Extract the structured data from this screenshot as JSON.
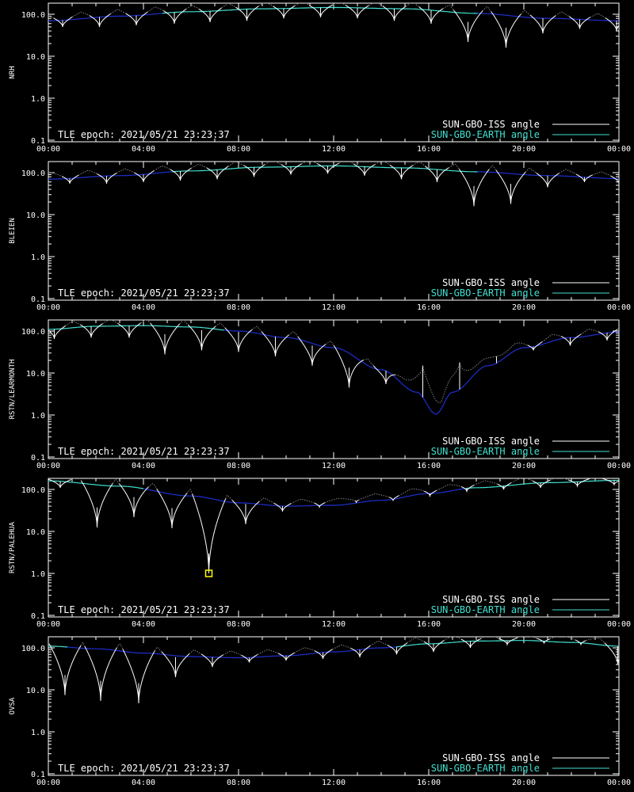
{
  "colors": {
    "background": "#000000",
    "axes": "#ffffff",
    "iss_series": "#ffffff",
    "iss_series_dim": "#808080",
    "earth_series_day": "#40e0d0",
    "earth_series_night": "#1e2fd0",
    "marker": "#ffff00"
  },
  "epoch_label": "TLE epoch: 2021/05/21 23:23:37",
  "legend": {
    "iss": "SUN-GBO-ISS angle",
    "earth": "SUN-GBO-EARTH angle"
  },
  "x_ticks": [
    "00:00",
    "04:00",
    "08:00",
    "12:00",
    "16:00",
    "20:00",
    "00:00"
  ],
  "y_ticks": [
    "100.0",
    "10.0",
    "1.0",
    "0.1"
  ],
  "chart_data": [
    {
      "type": "line",
      "station": "NRH",
      "ylabel": "NRH",
      "xlim_hours": [
        0,
        24
      ],
      "ylim": [
        0.1,
        100
      ],
      "y_scale": "log",
      "earth_angle": {
        "x_hours": [
          0,
          3,
          6,
          9,
          12,
          15,
          18,
          21,
          24
        ],
        "y": [
          70,
          90,
          115,
          135,
          145,
          135,
          105,
          80,
          70
        ]
      },
      "iss_angle": {
        "orbit_period_hours": 1.55,
        "dips": [
          {
            "t": 0.6,
            "y": 50
          },
          {
            "t": 2.15,
            "y": 50
          },
          {
            "t": 3.7,
            "y": 55
          },
          {
            "t": 5.3,
            "y": 60
          },
          {
            "t": 6.8,
            "y": 65
          },
          {
            "t": 8.35,
            "y": 70
          },
          {
            "t": 9.9,
            "y": 80
          },
          {
            "t": 11.45,
            "y": 85
          },
          {
            "t": 13.0,
            "y": 80
          },
          {
            "t": 14.55,
            "y": 70
          },
          {
            "t": 16.1,
            "y": 60
          },
          {
            "t": 17.65,
            "y": 22
          },
          {
            "t": 19.25,
            "y": 16
          },
          {
            "t": 20.8,
            "y": 35
          },
          {
            "t": 22.35,
            "y": 45
          },
          {
            "t": 23.9,
            "y": 40
          }
        ]
      }
    },
    {
      "type": "line",
      "station": "BLEIEN",
      "ylabel": "BLEIEN",
      "xlim_hours": [
        0,
        24
      ],
      "ylim": [
        0.1,
        100
      ],
      "y_scale": "log",
      "earth_angle": {
        "x_hours": [
          0,
          3,
          6,
          9,
          12,
          15,
          18,
          21,
          24
        ],
        "y": [
          70,
          85,
          110,
          135,
          145,
          130,
          105,
          85,
          72
        ]
      },
      "iss_angle": {
        "orbit_period_hours": 1.55,
        "dips": [
          {
            "t": 0.9,
            "y": 55
          },
          {
            "t": 2.45,
            "y": 55
          },
          {
            "t": 4.0,
            "y": 60
          },
          {
            "t": 5.55,
            "y": 65
          },
          {
            "t": 7.1,
            "y": 70
          },
          {
            "t": 8.65,
            "y": 80
          },
          {
            "t": 10.2,
            "y": 90
          },
          {
            "t": 11.75,
            "y": 95
          },
          {
            "t": 13.3,
            "y": 85
          },
          {
            "t": 14.85,
            "y": 70
          },
          {
            "t": 16.35,
            "y": 60
          },
          {
            "t": 17.9,
            "y": 16
          },
          {
            "t": 19.45,
            "y": 18
          },
          {
            "t": 21.0,
            "y": 45
          },
          {
            "t": 22.55,
            "y": 60
          },
          {
            "t": 24.0,
            "y": 55
          }
        ]
      }
    },
    {
      "type": "line",
      "station": "RSTN/LEARMONTH",
      "ylabel": "RSTN/LEARMONTH",
      "xlim_hours": [
        0,
        24
      ],
      "ylim": [
        0.1,
        100
      ],
      "y_scale": "log",
      "earth_angle": {
        "x_hours": [
          0,
          2,
          4,
          6,
          8,
          10,
          12,
          14,
          15.5,
          16.3,
          17,
          18.5,
          20,
          22,
          24
        ],
        "y": [
          110,
          130,
          135,
          125,
          100,
          70,
          40,
          12,
          3.5,
          1.05,
          3.5,
          15,
          40,
          70,
          95
        ]
      },
      "iss_angle": {
        "orbit_period_hours": 1.55,
        "dips": [
          {
            "t": 0.25,
            "y": 65
          },
          {
            "t": 1.8,
            "y": 70
          },
          {
            "t": 3.4,
            "y": 70
          },
          {
            "t": 4.9,
            "y": 28
          },
          {
            "t": 6.45,
            "y": 35
          },
          {
            "t": 8.0,
            "y": 32
          },
          {
            "t": 9.55,
            "y": 25
          },
          {
            "t": 11.1,
            "y": 15
          },
          {
            "t": 12.65,
            "y": 4.5
          },
          {
            "t": 14.2,
            "y": 5.5
          },
          {
            "t": 15.75,
            "y": 15
          },
          {
            "t": 17.3,
            "y": 18
          },
          {
            "t": 18.85,
            "y": 25
          },
          {
            "t": 20.4,
            "y": 35
          },
          {
            "t": 21.95,
            "y": 45
          },
          {
            "t": 23.5,
            "y": 60
          }
        ]
      }
    },
    {
      "type": "line",
      "station": "RSTN/PALEHUA",
      "ylabel": "RSTN/PALEHUA",
      "xlim_hours": [
        0,
        24
      ],
      "ylim": [
        0.1,
        100
      ],
      "y_scale": "log",
      "earth_angle": {
        "x_hours": [
          0,
          3,
          6,
          8,
          10,
          12,
          14,
          16,
          18,
          21,
          24
        ],
        "y": [
          160,
          120,
          70,
          48,
          40,
          42,
          55,
          80,
          110,
          145,
          165
        ]
      },
      "iss_angle": {
        "orbit_period_hours": 1.55,
        "dips": [
          {
            "t": 0.5,
            "y": 110
          },
          {
            "t": 2.05,
            "y": 12.5
          },
          {
            "t": 3.6,
            "y": 22
          },
          {
            "t": 5.2,
            "y": 12
          },
          {
            "t": 6.75,
            "y": 1.0
          },
          {
            "t": 8.3,
            "y": 15
          },
          {
            "t": 9.85,
            "y": 30
          },
          {
            "t": 11.4,
            "y": 38
          },
          {
            "t": 12.95,
            "y": 50
          },
          {
            "t": 14.5,
            "y": 55
          },
          {
            "t": 16.05,
            "y": 70
          },
          {
            "t": 17.6,
            "y": 90
          },
          {
            "t": 19.15,
            "y": 100
          },
          {
            "t": 20.7,
            "y": 110
          },
          {
            "t": 22.25,
            "y": 120
          },
          {
            "t": 23.8,
            "y": 130
          }
        ]
      },
      "marker": {
        "x_hours": 6.75,
        "y": 1.0
      }
    },
    {
      "type": "line",
      "station": "OVSA",
      "ylabel": "OVSA",
      "xlim_hours": [
        0,
        24
      ],
      "ylim": [
        0.1,
        100
      ],
      "y_scale": "log",
      "earth_angle": {
        "x_hours": [
          0,
          2,
          4,
          6,
          8,
          10,
          12,
          14,
          16,
          18,
          20,
          22,
          24
        ],
        "y": [
          110,
          95,
          75,
          62,
          58,
          65,
          80,
          100,
          125,
          145,
          150,
          135,
          110
        ]
      },
      "iss_angle": {
        "orbit_period_hours": 1.55,
        "dips": [
          {
            "t": 0.7,
            "y": 7.5
          },
          {
            "t": 2.2,
            "y": 5.5
          },
          {
            "t": 3.8,
            "y": 4.8
          },
          {
            "t": 5.35,
            "y": 20
          },
          {
            "t": 6.9,
            "y": 35
          },
          {
            "t": 8.45,
            "y": 45
          },
          {
            "t": 10.0,
            "y": 50
          },
          {
            "t": 11.55,
            "y": 55
          },
          {
            "t": 13.1,
            "y": 60
          },
          {
            "t": 14.65,
            "y": 70
          },
          {
            "t": 16.2,
            "y": 80
          },
          {
            "t": 17.75,
            "y": 100
          },
          {
            "t": 19.3,
            "y": 120
          },
          {
            "t": 20.85,
            "y": 130
          },
          {
            "t": 22.4,
            "y": 120
          },
          {
            "t": 23.95,
            "y": 40
          }
        ]
      }
    }
  ]
}
